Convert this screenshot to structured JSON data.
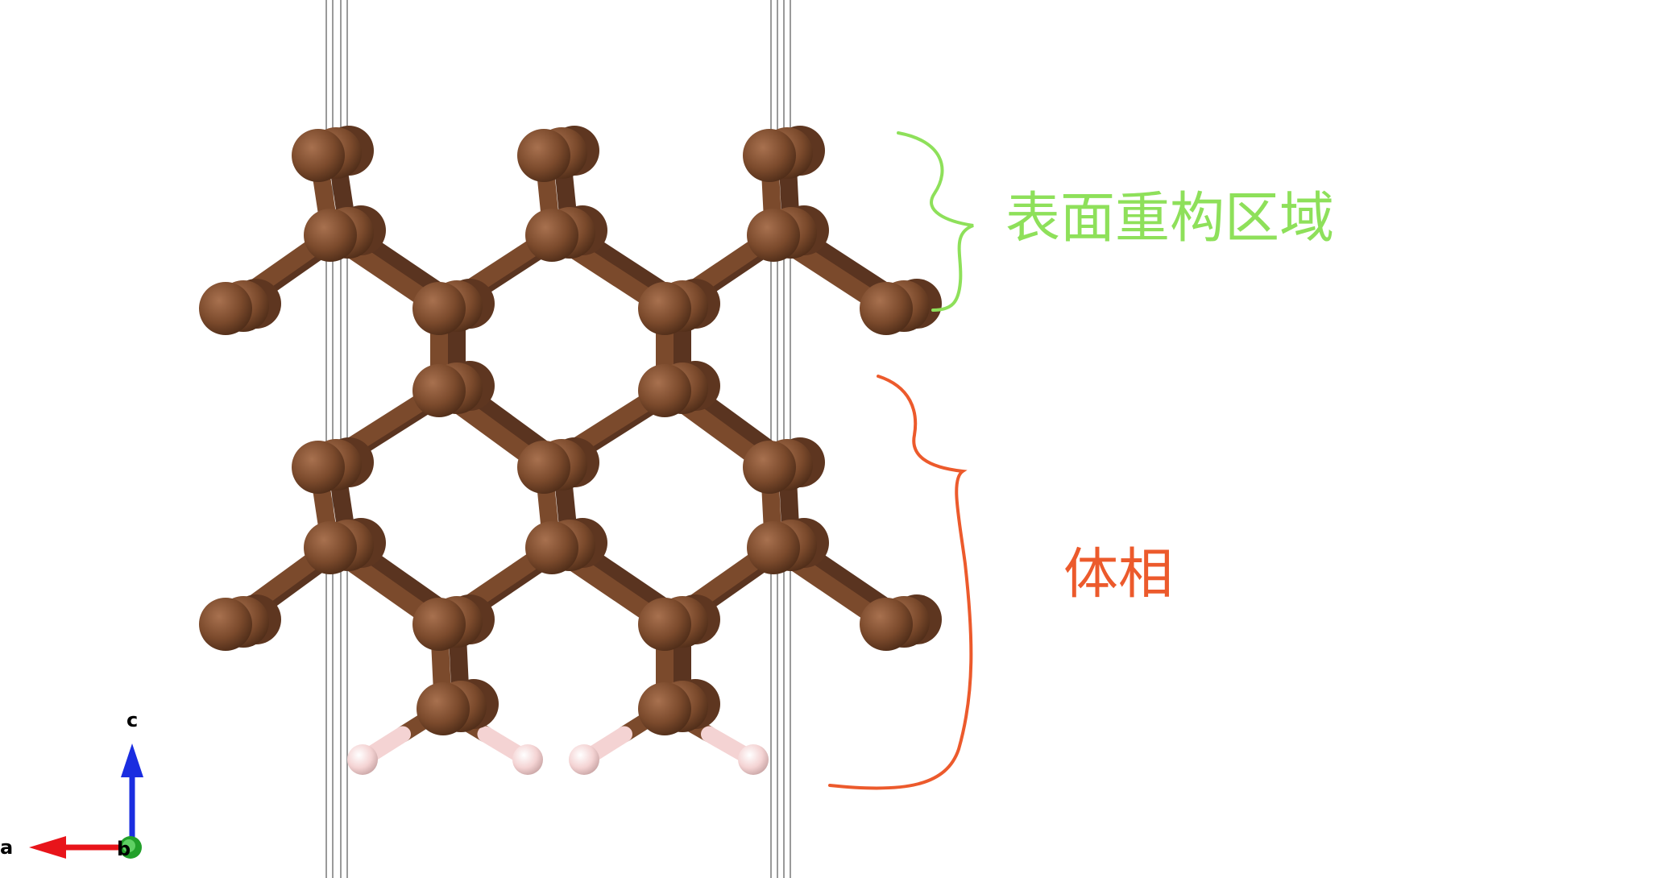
{
  "annotations": {
    "surface_label": "表面重构区域",
    "bulk_label": "体相",
    "surface_color": "#8ee05a",
    "bulk_color": "#ec5a2c"
  },
  "axes": {
    "a": "a",
    "b": "b",
    "c": "c",
    "a_color": "#e8141a",
    "b_color": "#22a02a",
    "c_color": "#1a2de0"
  },
  "atoms": {
    "carbon_color": "#7b4a2c",
    "hydrogen_color": "#f4d3d3",
    "bond_color": "#7b4a2c"
  }
}
